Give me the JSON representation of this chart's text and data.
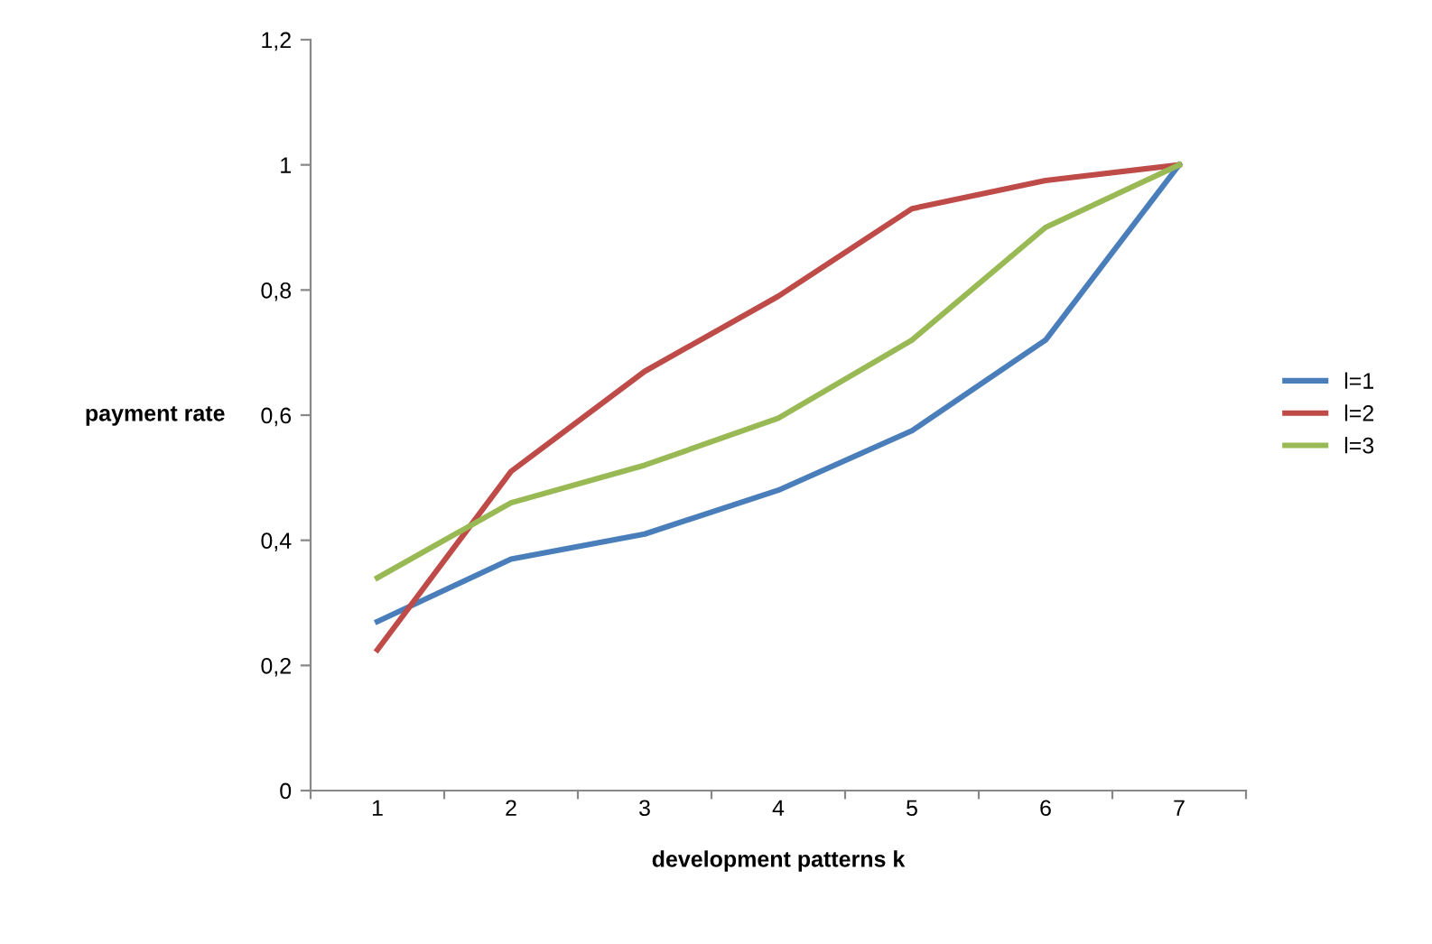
{
  "chart_data": {
    "type": "line",
    "xlabel": "development patterns k",
    "ylabel": "payment rate",
    "categories": [
      "1",
      "2",
      "3",
      "4",
      "5",
      "6",
      "7"
    ],
    "series": [
      {
        "name": "l=1",
        "color": "#4a7ebb",
        "values": [
          0.27,
          0.37,
          0.41,
          0.48,
          0.575,
          0.72,
          1.0
        ]
      },
      {
        "name": "l=2",
        "color": "#be4b48",
        "values": [
          0.225,
          0.51,
          0.67,
          0.79,
          0.93,
          0.975,
          1.0
        ]
      },
      {
        "name": "l=3",
        "color": "#98b954",
        "values": [
          0.34,
          0.46,
          0.52,
          0.595,
          0.72,
          0.9,
          1.0
        ]
      }
    ],
    "ylim": [
      0,
      1.2
    ],
    "yticks": [
      0,
      {
        "value": 0.2,
        "label": "0,2"
      },
      {
        "value": 0.4,
        "label": "0,4"
      },
      {
        "value": 0.6,
        "label": "0,6"
      },
      {
        "value": 0.8,
        "label": "0,8"
      },
      1,
      {
        "value": 1.2,
        "label": "1,2"
      }
    ],
    "grid": false,
    "legend": "right",
    "marker": "none",
    "line_style": "solid"
  }
}
